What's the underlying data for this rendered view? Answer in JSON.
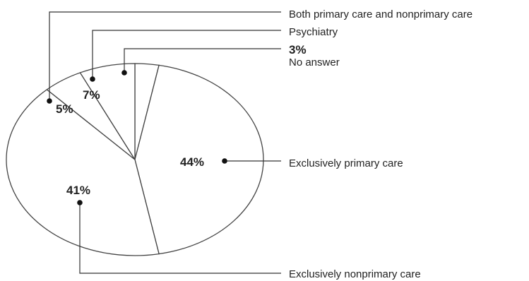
{
  "chart_data": {
    "type": "pie",
    "slices": [
      {
        "id": "no-answer",
        "label": "No answer",
        "pct_text": "3%",
        "value": 3
      },
      {
        "id": "exclusively-primary",
        "label": "Exclusively primary care",
        "pct_text": "44%",
        "value": 44
      },
      {
        "id": "exclusively-nonprimary",
        "label": "Exclusively nonprimary care",
        "pct_text": "41%",
        "value": 41
      },
      {
        "id": "both",
        "label": "Both primary care and nonprimary care",
        "pct_text": "5%",
        "value": 5
      },
      {
        "id": "psychiatry",
        "label": "Psychiatry",
        "pct_text": "7%",
        "value": 7
      }
    ]
  }
}
